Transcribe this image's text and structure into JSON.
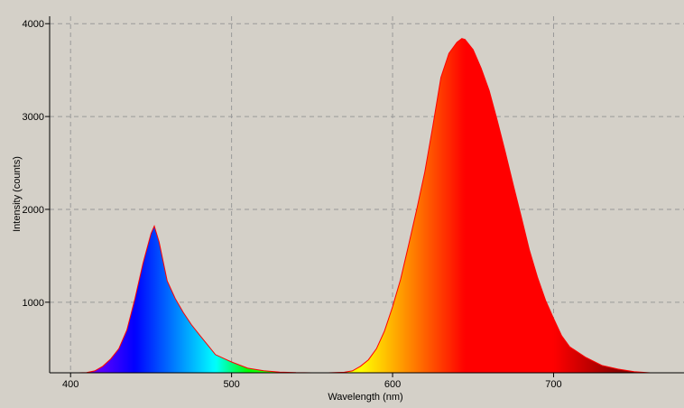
{
  "chart_data": {
    "type": "area",
    "x_label": "Wavelength (nm)",
    "y_label": "Intensity (counts)",
    "x": [
      405,
      410,
      415,
      420,
      425,
      430,
      435,
      440,
      445,
      450,
      452,
      455,
      460,
      465,
      470,
      475,
      480,
      490,
      500,
      510,
      520,
      530,
      540,
      550,
      560,
      570,
      575,
      580,
      585,
      590,
      595,
      600,
      605,
      610,
      615,
      620,
      625,
      630,
      635,
      640,
      643,
      645,
      650,
      655,
      660,
      665,
      670,
      675,
      680,
      685,
      690,
      695,
      700,
      705,
      710,
      720,
      730,
      740,
      750,
      760
    ],
    "series": [
      {
        "color": "#ff0000",
        "values": [
          240,
          242,
          260,
          310,
          390,
          500,
          700,
          1040,
          1420,
          1740,
          1820,
          1650,
          1230,
          1040,
          890,
          760,
          650,
          435,
          357,
          290,
          262,
          248,
          242,
          240,
          240,
          246,
          260,
          310,
          380,
          500,
          690,
          950,
          1250,
          1620,
          2000,
          2400,
          2900,
          3420,
          3680,
          3800,
          3840,
          3830,
          3720,
          3520,
          3280,
          2960,
          2620,
          2260,
          1915,
          1560,
          1270,
          1020,
          825,
          640,
          520,
          405,
          320,
          280,
          252,
          240
        ]
      }
    ],
    "xlim": [
      387,
      781
    ],
    "ylim": [
      240,
      4080
    ],
    "xticks": [
      400,
      500,
      600,
      700
    ],
    "yticks": [
      1000,
      2000,
      3000,
      4000
    ],
    "grid": true
  }
}
